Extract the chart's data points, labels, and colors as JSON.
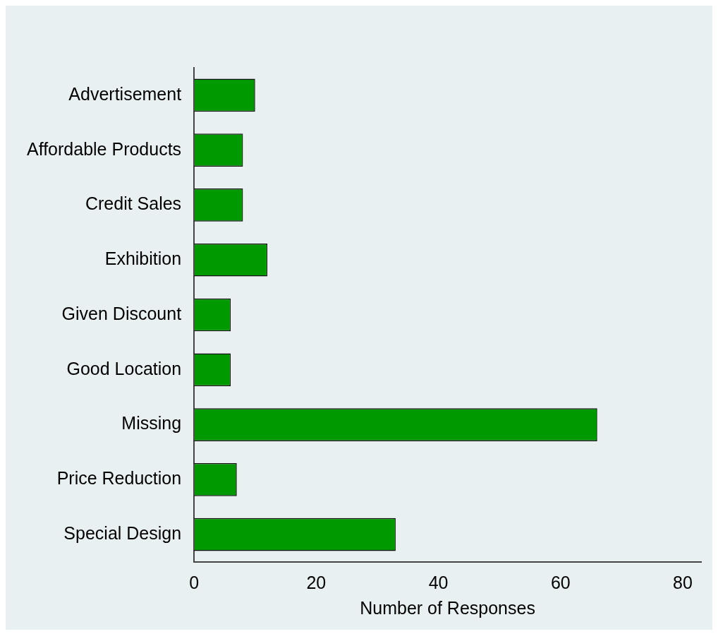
{
  "chart_data": {
    "type": "bar",
    "orientation": "horizontal",
    "xlabel": "Number of Responses",
    "categories": [
      "Advertisement",
      "Affordable Products",
      "Credit Sales",
      "Exhibition",
      "Given Discount",
      "Good Location",
      "Missing",
      "Price Reduction",
      "Special Design"
    ],
    "values": [
      10,
      8,
      8,
      12,
      6,
      6,
      66,
      7,
      33
    ],
    "color": "#009900",
    "xlim": [
      0,
      83
    ],
    "xticks": [
      0,
      20,
      40,
      60,
      80
    ],
    "grid": false,
    "legend": false
  }
}
